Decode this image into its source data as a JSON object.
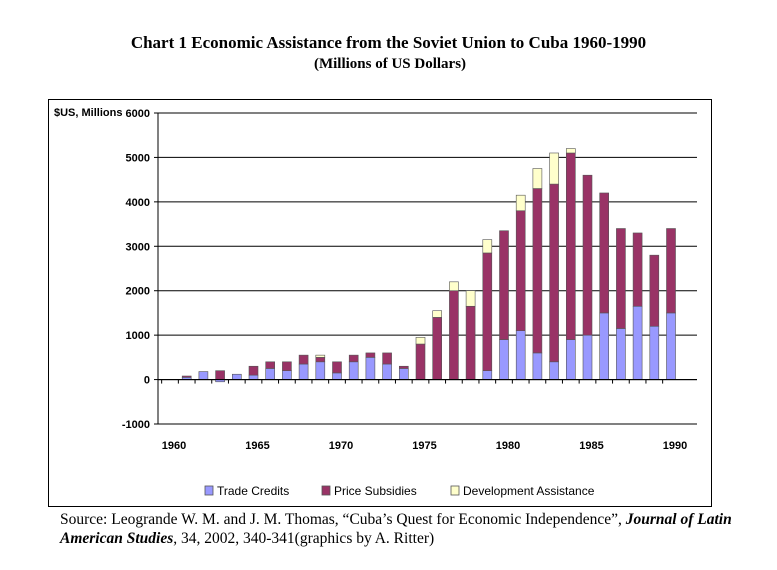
{
  "chart_data": {
    "type": "bar",
    "stacked": true,
    "title": "Chart 1 Economic Assistance from the Soviet Union to Cuba 1960-1990",
    "subtitle": "(Millions of US Dollars)",
    "ylabel": "$US, Millions",
    "ylim": [
      -1000,
      6000
    ],
    "yticks": [
      -1000,
      0,
      1000,
      2000,
      3000,
      4000,
      5000,
      6000
    ],
    "xtick_labels": [
      "1960",
      "1965",
      "1970",
      "1975",
      "1980",
      "1985",
      "1990"
    ],
    "grid": true,
    "legend_position": "bottom",
    "categories": [
      1960,
      1961,
      1962,
      1963,
      1964,
      1965,
      1966,
      1967,
      1968,
      1969,
      1970,
      1971,
      1972,
      1973,
      1974,
      1975,
      1976,
      1977,
      1978,
      1979,
      1980,
      1981,
      1982,
      1983,
      1984,
      1985,
      1986,
      1987,
      1988,
      1989,
      1990
    ],
    "series": [
      {
        "name": "Trade Credits",
        "color": "#9999ff",
        "values": [
          0,
          50,
          180,
          -50,
          120,
          100,
          250,
          200,
          350,
          400,
          150,
          400,
          500,
          350,
          250,
          0,
          0,
          0,
          0,
          200,
          900,
          1100,
          600,
          400,
          900,
          1000,
          1500,
          1150,
          1650,
          1200,
          1500
        ]
      },
      {
        "name": "Price Subsidies",
        "color": "#993366",
        "values": [
          0,
          30,
          0,
          200,
          0,
          200,
          150,
          200,
          200,
          100,
          250,
          150,
          100,
          250,
          50,
          800,
          1400,
          2000,
          1650,
          2650,
          2450,
          2700,
          3700,
          4000,
          4200,
          3600,
          2700,
          2250,
          1650,
          1600,
          1900
        ]
      },
      {
        "name": "Development Assistance",
        "color": "#ffffcc",
        "values": [
          0,
          0,
          0,
          0,
          0,
          0,
          0,
          0,
          0,
          50,
          0,
          0,
          0,
          0,
          0,
          150,
          150,
          200,
          350,
          300,
          0,
          350,
          450,
          700,
          100,
          0,
          0,
          0,
          0,
          0,
          0
        ]
      }
    ]
  },
  "source": {
    "prefix": "Source: ",
    "authors": "Leogrande W. M. and J. M. Thomas, “Cuba’s Quest for Economic Independence”, ",
    "journal": "Journal of Latin American Studies",
    "suffix": ", 34, 2002, 340-341(graphics by A. Ritter)"
  }
}
